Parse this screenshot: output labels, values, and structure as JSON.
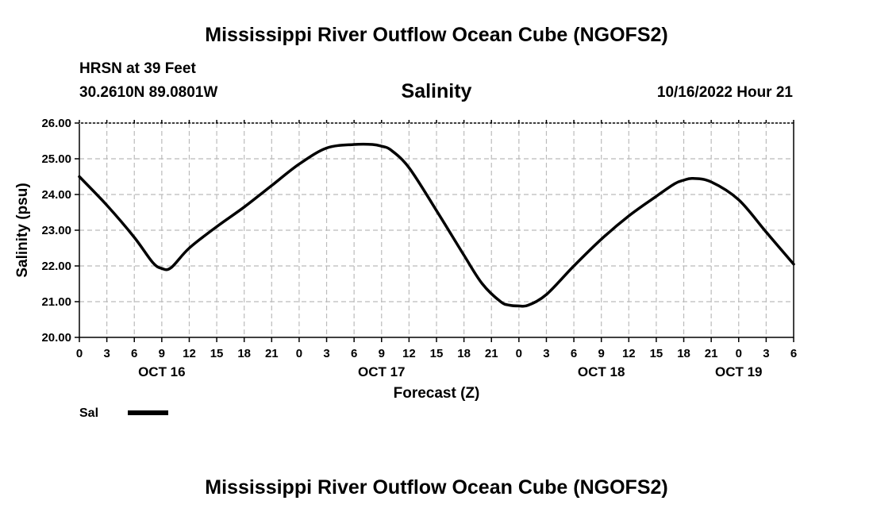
{
  "page": {
    "title_top": "Mississippi River Outflow Ocean Cube (NGOFS2)",
    "title_bottom": "Mississippi River Outflow Ocean Cube (NGOFS2)",
    "station": "HRSN at 39 Feet",
    "coords": "30.2610N  89.0801W",
    "variable": "Salinity",
    "date": "10/16/2022 Hour 21"
  },
  "chart_data": {
    "type": "line",
    "title": "Salinity",
    "xlabel": "Forecast (Z)",
    "ylabel": "Salinity (psu)",
    "ylim": [
      20,
      26
    ],
    "xlim": [
      0,
      78
    ],
    "x_unit": "hours since Oct 16 00Z",
    "yticks": [
      "20.00",
      "21.00",
      "22.00",
      "23.00",
      "24.00",
      "25.00",
      "26.00"
    ],
    "xtick_labels": [
      "0",
      "3",
      "6",
      "9",
      "12",
      "15",
      "18",
      "21",
      "0",
      "3",
      "6",
      "9",
      "12",
      "15",
      "18",
      "21",
      "0",
      "3",
      "6",
      "9",
      "12",
      "15",
      "18",
      "21",
      "0",
      "3",
      "6"
    ],
    "day_labels": [
      {
        "label": "OCT 16",
        "hour": 9
      },
      {
        "label": "OCT 17",
        "hour": 33
      },
      {
        "label": "OCT 18",
        "hour": 57
      },
      {
        "label": "OCT 19",
        "hour": 72
      }
    ],
    "grid": true,
    "legend": [
      {
        "name": "Sal",
        "color": "#000000"
      }
    ],
    "series": [
      {
        "name": "Sal",
        "color": "#000000",
        "x": [
          0,
          3,
          6,
          8,
          9,
          10,
          12,
          15,
          18,
          21,
          24,
          27,
          30,
          32,
          33,
          34,
          36,
          39,
          42,
          44,
          46,
          47,
          48,
          49,
          51,
          54,
          57,
          60,
          63,
          65,
          66,
          67,
          69,
          72,
          75,
          78
        ],
        "y": [
          24.5,
          23.7,
          22.8,
          22.1,
          21.93,
          21.95,
          22.5,
          23.1,
          23.65,
          24.25,
          24.85,
          25.3,
          25.4,
          25.4,
          25.35,
          25.25,
          24.75,
          23.55,
          22.3,
          21.5,
          21.0,
          20.9,
          20.88,
          20.9,
          21.2,
          22.0,
          22.75,
          23.4,
          23.95,
          24.3,
          24.4,
          24.45,
          24.35,
          23.85,
          22.95,
          22.05
        ]
      }
    ]
  }
}
